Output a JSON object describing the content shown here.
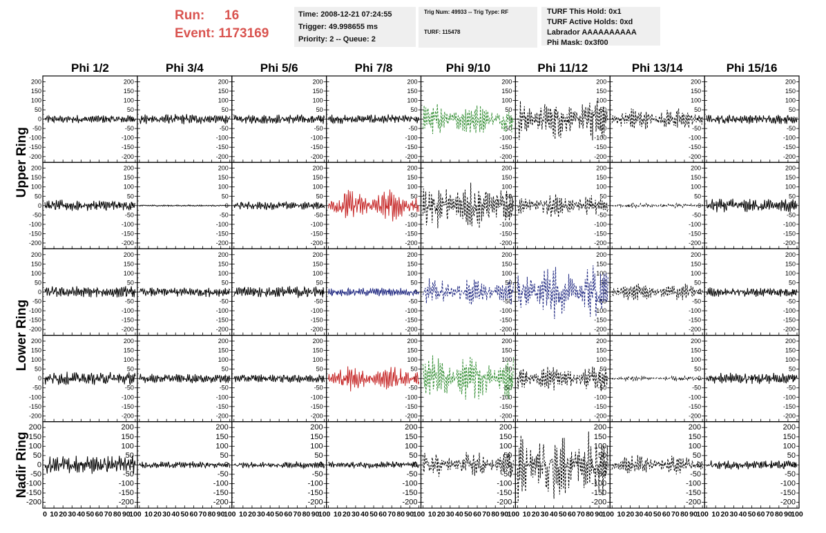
{
  "header": {
    "run_label": "Run:",
    "run_value": "16",
    "event_label": "Event:",
    "event_value": "1173169",
    "time": "Time: 2008-12-21 07:24:55",
    "trigger": "Trigger: 49.998655 ms",
    "priority": "Priority: 2 -- Queue: 2",
    "trig_num": "Trig Num: 49933 -- Trig Type: RF",
    "turf_id": "TURF: 115478",
    "turf_hold": "TURF This Hold: 0x1",
    "turf_active": "TURF Active Holds: 0xd",
    "labrador": "Labrador AAAAAAAAAA",
    "phi_mask": "Phi Mask: 0x3f00"
  },
  "chart_data": {
    "type": "line",
    "title": "",
    "columns": [
      "Phi 1/2",
      "Phi 3/4",
      "Phi 5/6",
      "Phi 7/8",
      "Phi 9/10",
      "Phi 11/12",
      "Phi 13/14",
      "Phi 15/16"
    ],
    "ring_labels": [
      {
        "label": "Upper Ring",
        "rows": [
          0,
          1
        ]
      },
      {
        "label": "Lower Ring",
        "rows": [
          2,
          3
        ]
      },
      {
        "label": "Nadir Ring",
        "rows": [
          4
        ]
      }
    ],
    "rows": 5,
    "xlim": [
      0,
      100
    ],
    "ylim": [
      -220,
      220
    ],
    "yticks": [
      -200,
      -150,
      -100,
      -50,
      0,
      50,
      100,
      150,
      200
    ],
    "xticks": [
      0,
      10,
      20,
      30,
      40,
      50,
      60,
      70,
      80,
      90,
      100
    ],
    "colors": {
      "black": "#000000",
      "green": "#2e8b2e",
      "red": "#c62828",
      "blue": "#1a237e"
    },
    "panels": [
      [
        {
          "amp": 18,
          "style": "solid",
          "color": "black"
        },
        {
          "amp": 22,
          "style": "solid",
          "color": "black"
        },
        {
          "amp": 20,
          "style": "solid",
          "color": "black"
        },
        {
          "amp": 20,
          "style": "solid",
          "color": "black"
        },
        {
          "amp": 70,
          "style": "dashed",
          "color": "green"
        },
        {
          "amp": 95,
          "style": "dashed",
          "color": "black"
        },
        {
          "amp": 50,
          "style": "dashed",
          "color": "black"
        },
        {
          "amp": 20,
          "style": "solid",
          "color": "black"
        }
      ],
      [
        {
          "amp": 25,
          "style": "solid",
          "color": "black"
        },
        {
          "amp": 3,
          "style": "solid",
          "color": "black"
        },
        {
          "amp": 18,
          "style": "solid",
          "color": "black"
        },
        {
          "amp": 70,
          "style": "solid",
          "color": "red"
        },
        {
          "amp": 110,
          "style": "dashed",
          "color": "black"
        },
        {
          "amp": 50,
          "style": "dashed",
          "color": "black"
        },
        {
          "amp": 10,
          "style": "dashed",
          "color": "black"
        },
        {
          "amp": 30,
          "style": "solid",
          "color": "black"
        }
      ],
      [
        {
          "amp": 25,
          "style": "solid",
          "color": "black"
        },
        {
          "amp": 22,
          "style": "solid",
          "color": "black"
        },
        {
          "amp": 25,
          "style": "solid",
          "color": "black"
        },
        {
          "amp": 18,
          "style": "solid",
          "color": "blue"
        },
        {
          "amp": 60,
          "style": "dashed",
          "color": "blue"
        },
        {
          "amp": 120,
          "style": "dashed",
          "color": "blue"
        },
        {
          "amp": 40,
          "style": "dashed",
          "color": "black"
        },
        {
          "amp": 20,
          "style": "solid",
          "color": "black"
        }
      ],
      [
        {
          "amp": 28,
          "style": "solid",
          "color": "black"
        },
        {
          "amp": 20,
          "style": "solid",
          "color": "black"
        },
        {
          "amp": 18,
          "style": "solid",
          "color": "black"
        },
        {
          "amp": 55,
          "style": "solid",
          "color": "red"
        },
        {
          "amp": 100,
          "style": "dashed",
          "color": "green"
        },
        {
          "amp": 60,
          "style": "dashed",
          "color": "black"
        },
        {
          "amp": 12,
          "style": "dashed",
          "color": "black"
        },
        {
          "amp": 25,
          "style": "solid",
          "color": "black"
        }
      ],
      [
        {
          "amp": 40,
          "style": "solid",
          "color": "black"
        },
        {
          "amp": 15,
          "style": "solid",
          "color": "black"
        },
        {
          "amp": 15,
          "style": "solid",
          "color": "black"
        },
        {
          "amp": 15,
          "style": "solid",
          "color": "black"
        },
        {
          "amp": 60,
          "style": "dashed",
          "color": "black"
        },
        {
          "amp": 160,
          "style": "dashed",
          "color": "black"
        },
        {
          "amp": 45,
          "style": "dashed",
          "color": "black"
        },
        {
          "amp": 20,
          "style": "solid",
          "color": "black"
        }
      ]
    ]
  }
}
